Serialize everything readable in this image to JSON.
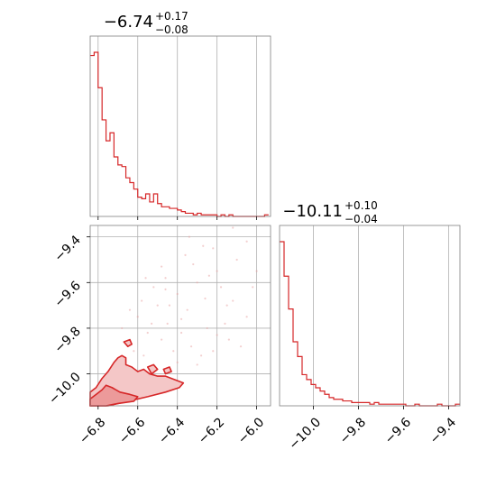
{
  "colors": {
    "line": "#d62728",
    "fill_outer": "#f4c7c7",
    "fill_inner": "#ec9a9a",
    "scatter": "#e8a0a0",
    "grid": "#b0b0b0",
    "spine": "#808080"
  },
  "chart_data": [
    {
      "type": "histogram",
      "panel": "top-left",
      "title": {
        "median": "−6.74",
        "upper": "+0.17",
        "lower": "−0.08"
      },
      "xlim": [
        -6.84,
        -5.93
      ],
      "x_ticks": [
        -6.8,
        -6.6,
        -6.4,
        -6.2,
        -6.0
      ],
      "grid": true,
      "bin_edges": [
        -6.84,
        -6.82,
        -6.8,
        -6.78,
        -6.76,
        -6.74,
        -6.72,
        -6.7,
        -6.68,
        -6.66,
        -6.64,
        -6.62,
        -6.6,
        -6.58,
        -6.56,
        -6.54,
        -6.52,
        -6.5,
        -6.48,
        -6.46,
        -6.44,
        -6.42,
        -6.4,
        -6.38,
        -6.36,
        -6.34,
        -6.32,
        -6.3,
        -6.28,
        -6.26,
        -6.24,
        -6.22,
        -6.2,
        -6.18,
        -6.16,
        -6.14,
        -6.12,
        -6.1,
        -6.08,
        -6.06,
        -6.04,
        -6.02,
        -6.0,
        -5.98,
        -5.96,
        -5.94
      ],
      "counts": [
        100,
        102,
        80,
        60,
        47,
        52,
        37,
        32,
        31,
        24,
        21,
        17,
        12,
        11,
        14,
        9,
        14,
        8,
        6,
        6,
        5,
        5,
        4,
        3,
        2,
        2,
        1,
        2,
        1,
        1,
        1,
        1,
        0,
        1,
        0,
        1,
        0,
        0,
        0,
        0,
        0,
        0,
        0,
        0,
        1
      ]
    },
    {
      "type": "histogram",
      "panel": "bottom-right",
      "title": {
        "median": "−10.11",
        "upper": "+0.10",
        "lower": "−0.04"
      },
      "xlim": [
        -10.15,
        -9.35
      ],
      "x_ticks": [
        -10.0,
        -9.8,
        -9.6,
        -9.4
      ],
      "grid": true,
      "bin_edges": [
        -10.15,
        -10.13,
        -10.11,
        -10.09,
        -10.07,
        -10.05,
        -10.03,
        -10.01,
        -9.99,
        -9.97,
        -9.95,
        -9.93,
        -9.91,
        -9.89,
        -9.87,
        -9.85,
        -9.83,
        -9.81,
        -9.79,
        -9.77,
        -9.75,
        -9.73,
        -9.71,
        -9.69,
        -9.67,
        -9.65,
        -9.63,
        -9.61,
        -9.59,
        -9.57,
        -9.55,
        -9.53,
        -9.51,
        -9.49,
        -9.47,
        -9.45,
        -9.43,
        -9.41,
        -9.39,
        -9.37,
        -9.35
      ],
      "counts": [
        100,
        79,
        59,
        39,
        30,
        19,
        16,
        13,
        11,
        9,
        7,
        5,
        4,
        4,
        3,
        3,
        2,
        2,
        2,
        2,
        1,
        2,
        1,
        1,
        1,
        1,
        1,
        1,
        0,
        0,
        1,
        0,
        0,
        0,
        0,
        1,
        0,
        0,
        0,
        1
      ]
    },
    {
      "type": "contour",
      "panel": "bottom-left",
      "xlim": [
        -6.84,
        -5.93
      ],
      "ylim": [
        -10.14,
        -9.35
      ],
      "x_ticks": [
        -6.8,
        -6.6,
        -6.4,
        -6.2,
        -6.0
      ],
      "y_ticks": [
        -10.0,
        -9.8,
        -9.6,
        -9.4
      ],
      "grid": true,
      "levels": [
        {
          "name": "outer",
          "points": [
            [
              -6.84,
              -10.14
            ],
            [
              -6.84,
              -10.08
            ],
            [
              -6.81,
              -10.06
            ],
            [
              -6.78,
              -10.02
            ],
            [
              -6.75,
              -9.99
            ],
            [
              -6.72,
              -9.95
            ],
            [
              -6.7,
              -9.93
            ],
            [
              -6.68,
              -9.92
            ],
            [
              -6.66,
              -9.93
            ],
            [
              -6.66,
              -9.96
            ],
            [
              -6.63,
              -9.97
            ],
            [
              -6.6,
              -9.99
            ],
            [
              -6.57,
              -9.98
            ],
            [
              -6.54,
              -10.0
            ],
            [
              -6.5,
              -10.01
            ],
            [
              -6.46,
              -10.01
            ],
            [
              -6.43,
              -10.02
            ],
            [
              -6.4,
              -10.03
            ],
            [
              -6.37,
              -10.04
            ],
            [
              -6.39,
              -10.06
            ],
            [
              -6.46,
              -10.08
            ],
            [
              -6.55,
              -10.1
            ],
            [
              -6.65,
              -10.12
            ],
            [
              -6.75,
              -10.14
            ]
          ]
        },
        {
          "name": "inner",
          "points": [
            [
              -6.84,
              -10.14
            ],
            [
              -6.84,
              -10.11
            ],
            [
              -6.81,
              -10.09
            ],
            [
              -6.78,
              -10.07
            ],
            [
              -6.76,
              -10.05
            ],
            [
              -6.73,
              -10.06
            ],
            [
              -6.69,
              -10.08
            ],
            [
              -6.64,
              -10.09
            ],
            [
              -6.6,
              -10.1
            ],
            [
              -6.62,
              -10.12
            ],
            [
              -6.7,
              -10.13
            ],
            [
              -6.76,
              -10.14
            ]
          ]
        },
        {
          "name": "island-1",
          "points": [
            [
              -6.67,
              -9.86
            ],
            [
              -6.64,
              -9.85
            ],
            [
              -6.63,
              -9.87
            ],
            [
              -6.65,
              -9.88
            ]
          ]
        },
        {
          "name": "island-2",
          "points": [
            [
              -6.55,
              -9.97
            ],
            [
              -6.52,
              -9.96
            ],
            [
              -6.5,
              -9.98
            ],
            [
              -6.53,
              -10.0
            ]
          ]
        },
        {
          "name": "island-3",
          "points": [
            [
              -6.47,
              -9.98
            ],
            [
              -6.44,
              -9.97
            ],
            [
              -6.43,
              -9.99
            ],
            [
              -6.46,
              -10.0
            ]
          ]
        }
      ],
      "scatter": [
        [
          -6.6,
          -9.75
        ],
        [
          -6.55,
          -9.82
        ],
        [
          -6.5,
          -9.7
        ],
        [
          -6.45,
          -9.78
        ],
        [
          -6.4,
          -9.65
        ],
        [
          -6.35,
          -9.72
        ],
        [
          -6.3,
          -9.6
        ],
        [
          -6.25,
          -9.8
        ],
        [
          -6.2,
          -9.55
        ],
        [
          -6.15,
          -9.7
        ],
        [
          -6.1,
          -9.5
        ],
        [
          -6.05,
          -9.75
        ],
        [
          -6.48,
          -9.85
        ],
        [
          -6.42,
          -9.9
        ],
        [
          -6.38,
          -9.82
        ],
        [
          -6.33,
          -9.88
        ],
        [
          -6.28,
          -9.92
        ],
        [
          -6.58,
          -9.68
        ],
        [
          -6.52,
          -9.62
        ],
        [
          -6.46,
          -9.58
        ],
        [
          -6.36,
          -9.48
        ],
        [
          -6.32,
          -9.52
        ],
        [
          -6.22,
          -9.45
        ],
        [
          -6.18,
          -9.62
        ],
        [
          -6.12,
          -9.68
        ],
        [
          -6.08,
          -9.88
        ],
        [
          -6.02,
          -9.62
        ],
        [
          -6.62,
          -9.9
        ],
        [
          -6.57,
          -9.92
        ],
        [
          -6.4,
          -9.95
        ],
        [
          -6.3,
          -9.96
        ],
        [
          -6.22,
          -9.9
        ],
        [
          -6.16,
          -9.78
        ],
        [
          -6.26,
          -9.67
        ],
        [
          -6.44,
          -9.7
        ],
        [
          -6.53,
          -9.78
        ],
        [
          -6.68,
          -9.8
        ],
        [
          -6.34,
          -9.4
        ],
        [
          -6.27,
          -9.44
        ],
        [
          -6.48,
          -9.53
        ],
        [
          -6.56,
          -9.58
        ],
        [
          -6.64,
          -9.72
        ],
        [
          -6.12,
          -9.36
        ],
        [
          -6.05,
          -9.42
        ],
        [
          -6.0,
          -9.55
        ],
        [
          -6.2,
          -9.83
        ],
        [
          -6.38,
          -9.76
        ],
        [
          -6.46,
          -9.63
        ],
        [
          -6.24,
          -9.57
        ],
        [
          -6.14,
          -9.85
        ]
      ]
    }
  ]
}
